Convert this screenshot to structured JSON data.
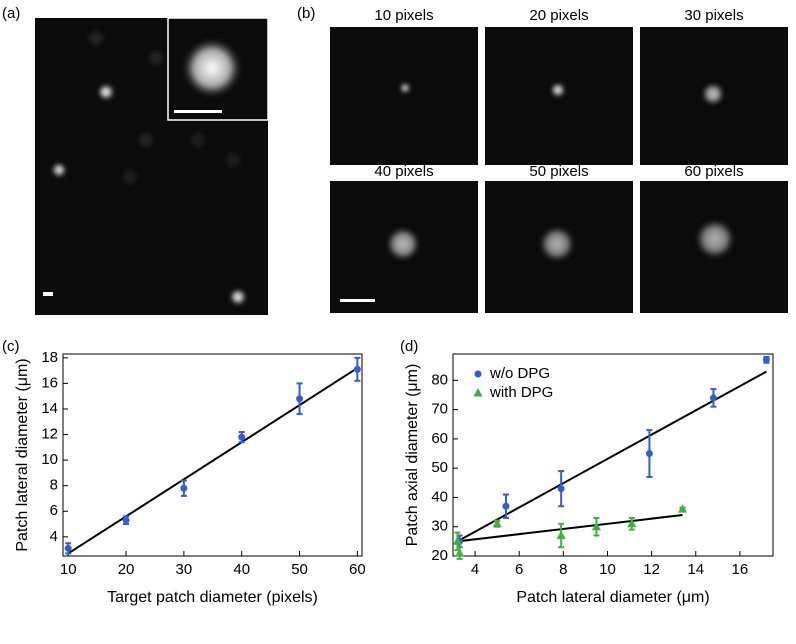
{
  "panels": {
    "a": "(a)",
    "b": "(b)",
    "c": "(c)",
    "d": "(d)"
  },
  "image_labels": [
    "10 pixels",
    "20 pixels",
    "30 pixels",
    "40 pixels",
    "50 pixels",
    "60 pixels"
  ],
  "chart_data": [
    {
      "type": "scatter",
      "xlabel": "Target patch diameter (pixels)",
      "ylabel": "Patch lateral diameter (μm)",
      "xlim": [
        9.1,
        60.8
      ],
      "ylim": [
        2.5,
        18.3
      ],
      "xticks": [
        10,
        20,
        30,
        40,
        50,
        60
      ],
      "yticks": [
        4,
        6,
        8,
        10,
        12,
        14,
        16,
        18
      ],
      "series": [
        {
          "color": "#2f5fd6",
          "marker": "circle",
          "x": [
            10,
            20,
            30,
            40,
            50,
            60
          ],
          "values": [
            3.1,
            5.3,
            7.8,
            11.8,
            14.8,
            17.1
          ],
          "errors": [
            0.4,
            0.3,
            0.6,
            0.4,
            1.2,
            0.9
          ]
        }
      ],
      "fit_lines": [
        {
          "color": "#000000",
          "x": [
            10,
            60
          ],
          "y": [
            2.7,
            17.2
          ]
        }
      ]
    },
    {
      "type": "scatter",
      "xlabel": "Patch lateral diameter (μm)",
      "ylabel": "Patch axial diameter (μm)",
      "xlim": [
        3,
        17.5
      ],
      "ylim": [
        20,
        89
      ],
      "xticks": [
        4,
        6,
        8,
        10,
        12,
        14,
        16
      ],
      "yticks": [
        20,
        30,
        40,
        50,
        60,
        70,
        80
      ],
      "legend": "upper left",
      "series": [
        {
          "name": "w/o DPG",
          "color": "#2f5fd6",
          "marker": "circle",
          "x": [
            3.3,
            5.4,
            7.9,
            11.9,
            14.8,
            17.2
          ],
          "values": [
            25,
            37,
            43,
            55,
            74,
            87
          ],
          "errors": [
            2,
            4,
            6,
            8,
            3,
            1
          ]
        },
        {
          "name": "with DPG",
          "color": "#3cb43c",
          "marker": "triangle",
          "x": [
            3.2,
            3.3,
            5.0,
            7.9,
            9.5,
            11.1,
            13.4
          ],
          "values": [
            25,
            21,
            31,
            27,
            30,
            31,
            36
          ],
          "errors": [
            3,
            2,
            1,
            4,
            3,
            2,
            0.5
          ]
        }
      ],
      "fit_lines": [
        {
          "color": "#000000",
          "x": [
            3.2,
            17.2
          ],
          "y": [
            25,
            83
          ]
        },
        {
          "color": "#000000",
          "x": [
            3.2,
            13.4
          ],
          "y": [
            25,
            34
          ]
        }
      ]
    }
  ]
}
